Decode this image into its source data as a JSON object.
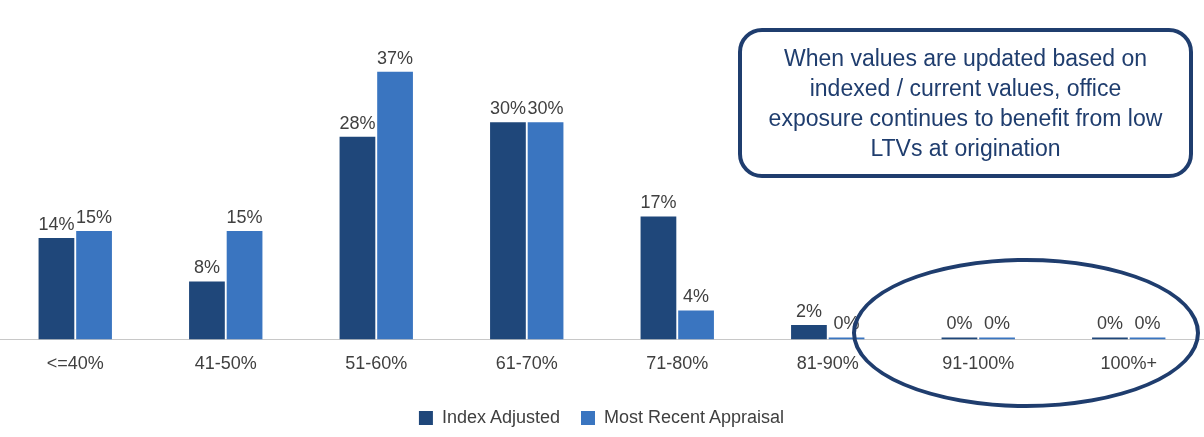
{
  "chart_data": {
    "type": "bar",
    "categories": [
      "<=40%",
      "41-50%",
      "51-60%",
      "61-70%",
      "71-80%",
      "81-90%",
      "91-100%",
      "100%+"
    ],
    "series": [
      {
        "name": "Index Adjusted",
        "color": "#1f477a",
        "values": [
          14,
          8,
          28,
          30,
          17,
          2,
          0,
          0
        ],
        "value_labels": [
          "14%",
          "8%",
          "28%",
          "30%",
          "17%",
          "2%",
          "0%",
          "0%"
        ]
      },
      {
        "name": "Most Recent Appraisal",
        "color": "#3a75c0",
        "values": [
          15,
          15,
          37,
          30,
          4,
          0,
          0,
          0
        ],
        "value_labels": [
          "15%",
          "15%",
          "37%",
          "30%",
          "4%",
          "0%",
          "0%",
          "0%"
        ]
      }
    ],
    "legend": "bottom",
    "grid": false,
    "annotations": [
      "When values are updated based on indexed / current values, office exposure continues to benefit from low LTVs at origination"
    ]
  }
}
